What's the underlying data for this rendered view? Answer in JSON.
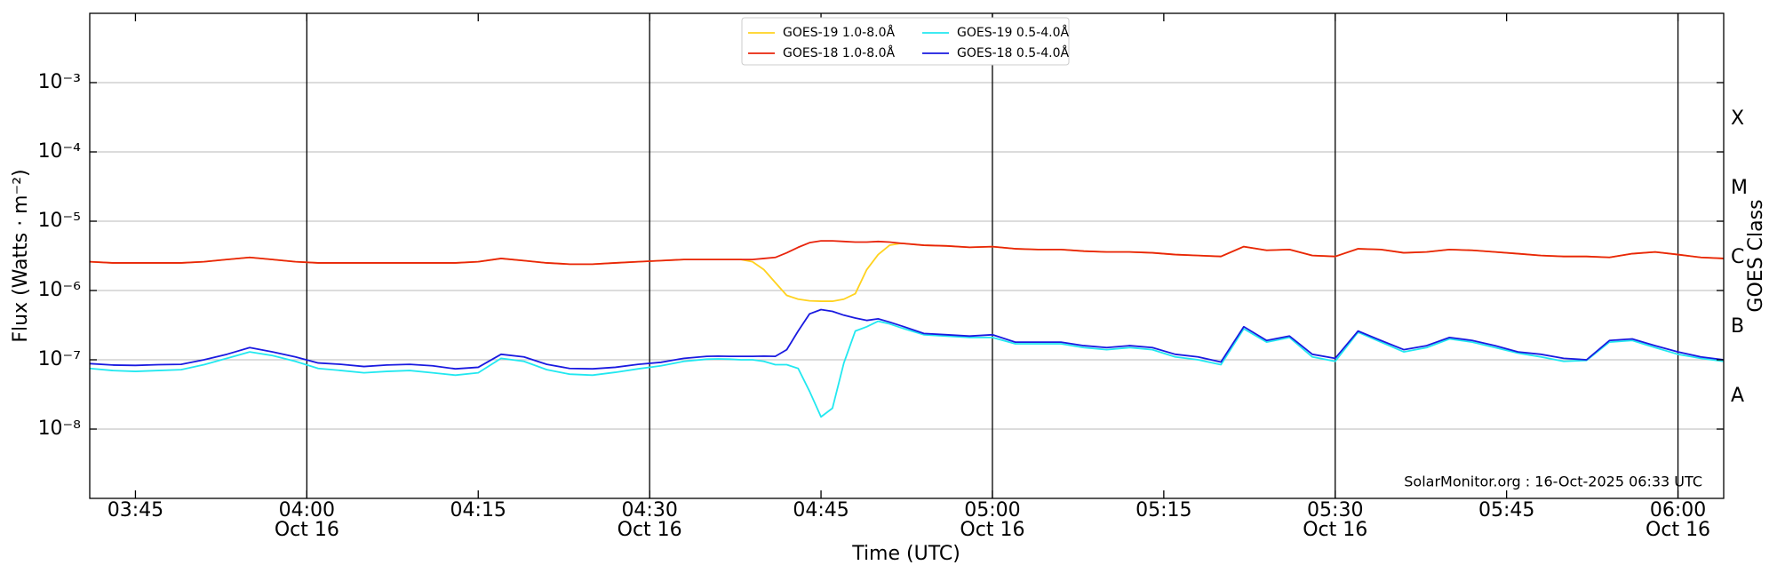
{
  "chart_data": {
    "type": "line",
    "y_label": "Flux (Watts · m⁻²)",
    "x_label": "Time (UTC)",
    "y2_label": "GOES Class",
    "annotation": "SolarMonitor.org : 16-Oct-2025 06:33 UTC",
    "log_y": true,
    "grid": true,
    "legend": "top",
    "xlim": [
      "03:41",
      "06:04"
    ],
    "xticks": [
      "03:45",
      {
        "value": "04:00",
        "label": [
          "04:00",
          "Oct 16"
        ]
      },
      "04:15",
      {
        "value": "04:30",
        "label": [
          "04:30",
          "Oct 16"
        ]
      },
      "04:45",
      {
        "value": "05:00",
        "label": [
          "05:00",
          "Oct 16"
        ]
      },
      "05:15",
      {
        "value": "05:30",
        "label": [
          "05:30",
          "Oct 16"
        ]
      },
      "05:45",
      {
        "value": "06:00",
        "label": [
          "06:00",
          "Oct 16"
        ]
      }
    ],
    "ylim": [
      1e-09,
      0.01
    ],
    "yticks": [
      {
        "value": 1e-08,
        "label": "10⁻⁸"
      },
      {
        "value": 1e-07,
        "label": "10⁻⁷"
      },
      {
        "value": 1e-06,
        "label": "10⁻⁶"
      },
      {
        "value": 1e-05,
        "label": "10⁻⁵"
      },
      {
        "value": 0.0001,
        "label": "10⁻⁴"
      },
      {
        "value": 0.001,
        "label": "10⁻³"
      }
    ],
    "y2lim": [
      1e-09,
      0.01
    ],
    "y2ticks": [
      {
        "value": 3e-08,
        "label": "A"
      },
      {
        "value": 3e-07,
        "label": "B"
      },
      {
        "value": 3e-06,
        "label": "C"
      },
      {
        "value": 3e-05,
        "label": "M"
      },
      {
        "value": 0.0003,
        "label": "X"
      }
    ],
    "x": [
      "03:41",
      "03:43",
      "03:45",
      "03:47",
      "03:49",
      "03:51",
      "03:53",
      "03:55",
      "03:57",
      "03:59",
      "04:01",
      "04:03",
      "04:05",
      "04:07",
      "04:09",
      "04:11",
      "04:13",
      "04:15",
      "04:17",
      "04:19",
      "04:21",
      "04:23",
      "04:25",
      "04:27",
      "04:29",
      "04:31",
      "04:33",
      "04:35",
      "04:36",
      "04:37",
      "04:38",
      "04:39",
      "04:40",
      "04:41",
      "04:42",
      "04:43",
      "04:44",
      "04:45",
      "04:46",
      "04:47",
      "04:48",
      "04:49",
      "04:50",
      "04:51",
      "04:52",
      "04:54",
      "04:56",
      "04:58",
      "05:00",
      "05:02",
      "05:04",
      "05:06",
      "05:08",
      "05:10",
      "05:12",
      "05:14",
      "05:16",
      "05:18",
      "05:20",
      "05:22",
      "05:24",
      "05:26",
      "05:28",
      "05:30",
      "05:32",
      "05:34",
      "05:36",
      "05:38",
      "05:40",
      "05:42",
      "05:44",
      "05:46",
      "05:48",
      "05:50",
      "05:52",
      "05:54",
      "05:56",
      "05:58",
      "06:00",
      "06:02",
      "06:04"
    ],
    "series": [
      {
        "name": "GOES-19 1.0-8.0Å",
        "color": "#ffd21f",
        "values": [
          2.6e-06,
          2.5e-06,
          2.5e-06,
          2.5e-06,
          2.5e-06,
          2.6e-06,
          2.8e-06,
          3e-06,
          2.8e-06,
          2.6e-06,
          2.5e-06,
          2.5e-06,
          2.5e-06,
          2.5e-06,
          2.5e-06,
          2.5e-06,
          2.5e-06,
          2.6e-06,
          2.9e-06,
          2.7e-06,
          2.5e-06,
          2.4e-06,
          2.4e-06,
          2.5e-06,
          2.6e-06,
          2.7e-06,
          2.8e-06,
          2.8e-06,
          2.8e-06,
          2.8e-06,
          2.8e-06,
          2.6e-06,
          2e-06,
          1.3e-06,
          8.5e-07,
          7.5e-07,
          7.1e-07,
          7e-07,
          7e-07,
          7.5e-07,
          9e-07,
          2e-06,
          3.3e-06,
          4.5e-06,
          4.8e-06,
          4.5e-06,
          4.4e-06,
          4.2e-06,
          4.3e-06,
          4e-06,
          3.9e-06,
          3.9e-06,
          3.7e-06,
          3.6e-06,
          3.6e-06,
          3.5e-06,
          3.3e-06,
          3.2e-06,
          3.1e-06,
          4.3e-06,
          3.8e-06,
          3.9e-06,
          3.2e-06,
          3.1e-06,
          4e-06,
          3.9e-06,
          3.5e-06,
          3.6e-06,
          3.9e-06,
          3.8e-06,
          3.6e-06,
          3.4e-06,
          3.2e-06,
          3.1e-06,
          3.1e-06,
          3e-06,
          3.4e-06,
          3.6e-06,
          3.3e-06,
          3e-06,
          2.9e-06
        ]
      },
      {
        "name": "GOES-18 1.0-8.0Å",
        "color": "#e8240c",
        "values": [
          2.6e-06,
          2.5e-06,
          2.5e-06,
          2.5e-06,
          2.5e-06,
          2.6e-06,
          2.8e-06,
          3e-06,
          2.8e-06,
          2.6e-06,
          2.5e-06,
          2.5e-06,
          2.5e-06,
          2.5e-06,
          2.5e-06,
          2.5e-06,
          2.5e-06,
          2.6e-06,
          2.9e-06,
          2.7e-06,
          2.5e-06,
          2.4e-06,
          2.4e-06,
          2.5e-06,
          2.6e-06,
          2.7e-06,
          2.8e-06,
          2.8e-06,
          2.8e-06,
          2.8e-06,
          2.8e-06,
          2.8e-06,
          2.9e-06,
          3e-06,
          3.5e-06,
          4.2e-06,
          4.9e-06,
          5.2e-06,
          5.2e-06,
          5.1e-06,
          5e-06,
          5e-06,
          5.1e-06,
          5e-06,
          4.8e-06,
          4.5e-06,
          4.4e-06,
          4.2e-06,
          4.3e-06,
          4e-06,
          3.9e-06,
          3.9e-06,
          3.7e-06,
          3.6e-06,
          3.6e-06,
          3.5e-06,
          3.3e-06,
          3.2e-06,
          3.1e-06,
          4.3e-06,
          3.8e-06,
          3.9e-06,
          3.2e-06,
          3.1e-06,
          4e-06,
          3.9e-06,
          3.5e-06,
          3.6e-06,
          3.9e-06,
          3.8e-06,
          3.6e-06,
          3.4e-06,
          3.2e-06,
          3.1e-06,
          3.1e-06,
          3e-06,
          3.4e-06,
          3.6e-06,
          3.3e-06,
          3e-06,
          2.9e-06
        ]
      },
      {
        "name": "GOES-19 0.5-4.0Å",
        "color": "#22e8f0",
        "values": [
          7.5e-08,
          7e-08,
          6.8e-08,
          7e-08,
          7.2e-08,
          8.5e-08,
          1.05e-07,
          1.3e-07,
          1.15e-07,
          9.5e-08,
          7.5e-08,
          7e-08,
          6.5e-08,
          6.8e-08,
          7e-08,
          6.5e-08,
          6e-08,
          6.5e-08,
          1.05e-07,
          9.5e-08,
          7.2e-08,
          6.2e-08,
          6e-08,
          6.6e-08,
          7.4e-08,
          8.2e-08,
          9.5e-08,
          1.02e-07,
          1.03e-07,
          1.02e-07,
          1e-07,
          1e-07,
          9.5e-08,
          8.5e-08,
          8.5e-08,
          7.5e-08,
          3.5e-08,
          1.5e-08,
          2e-08,
          9e-08,
          2.6e-07,
          3e-07,
          3.6e-07,
          3.3e-07,
          2.9e-07,
          2.3e-07,
          2.2e-07,
          2.1e-07,
          2.1e-07,
          1.7e-07,
          1.7e-07,
          1.7e-07,
          1.5e-07,
          1.4e-07,
          1.5e-07,
          1.4e-07,
          1.1e-07,
          1e-07,
          8.5e-08,
          2.8e-07,
          1.8e-07,
          2.1e-07,
          1.1e-07,
          9.5e-08,
          2.5e-07,
          1.8e-07,
          1.3e-07,
          1.5e-07,
          2e-07,
          1.8e-07,
          1.5e-07,
          1.25e-07,
          1.1e-07,
          9.5e-08,
          9.8e-08,
          1.8e-07,
          1.9e-07,
          1.5e-07,
          1.2e-07,
          1.05e-07,
          9.5e-08
        ]
      },
      {
        "name": "GOES-18 0.5-4.0Å",
        "color": "#1a1ae0",
        "values": [
          8.8e-08,
          8.4e-08,
          8.3e-08,
          8.5e-08,
          8.6e-08,
          1e-07,
          1.2e-07,
          1.5e-07,
          1.3e-07,
          1.1e-07,
          9e-08,
          8.6e-08,
          8e-08,
          8.4e-08,
          8.6e-08,
          8.2e-08,
          7.4e-08,
          7.8e-08,
          1.2e-07,
          1.1e-07,
          8.6e-08,
          7.5e-08,
          7.4e-08,
          7.8e-08,
          8.6e-08,
          9.2e-08,
          1.05e-07,
          1.12e-07,
          1.13e-07,
          1.12e-07,
          1.12e-07,
          1.12e-07,
          1.13e-07,
          1.12e-07,
          1.4e-07,
          2.6e-07,
          4.6e-07,
          5.3e-07,
          5e-07,
          4.4e-07,
          4e-07,
          3.7e-07,
          3.9e-07,
          3.5e-07,
          3.1e-07,
          2.4e-07,
          2.3e-07,
          2.2e-07,
          2.3e-07,
          1.8e-07,
          1.8e-07,
          1.8e-07,
          1.6e-07,
          1.5e-07,
          1.6e-07,
          1.5e-07,
          1.2e-07,
          1.1e-07,
          9.3e-08,
          3e-07,
          1.9e-07,
          2.2e-07,
          1.2e-07,
          1.05e-07,
          2.6e-07,
          1.9e-07,
          1.4e-07,
          1.6e-07,
          2.1e-07,
          1.9e-07,
          1.6e-07,
          1.3e-07,
          1.2e-07,
          1.05e-07,
          1e-07,
          1.9e-07,
          2e-07,
          1.6e-07,
          1.3e-07,
          1.1e-07,
          1e-07
        ]
      }
    ]
  }
}
